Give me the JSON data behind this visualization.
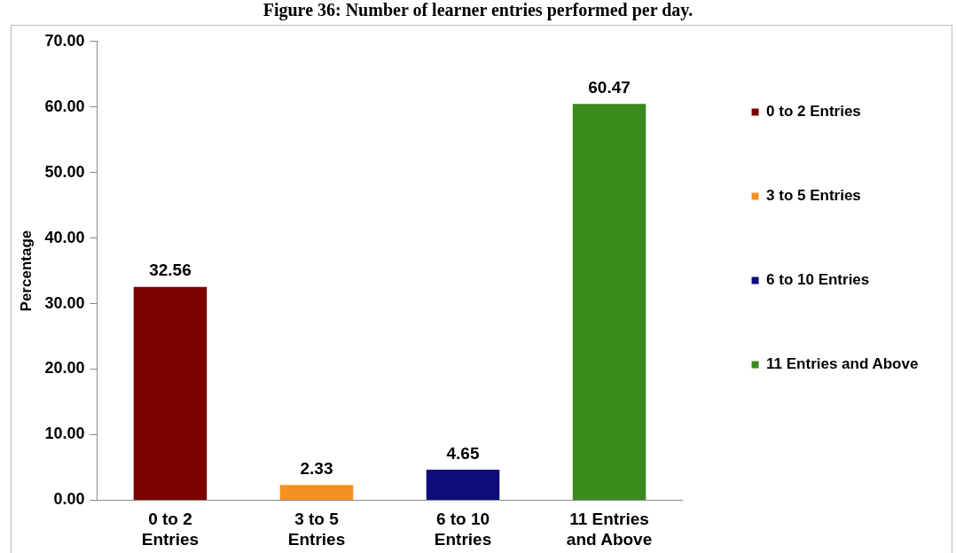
{
  "chart_data": {
    "type": "bar",
    "title": "Figure 36: Number of learner entries performed per day.",
    "ylabel": "Percentage",
    "categories": [
      "0 to 2 Entries",
      "3 to 5 Entries",
      "6 to 10 Entries",
      "11 Entries and Above"
    ],
    "series": [
      {
        "name": "0 to 2 Entries",
        "color": "#7b0000",
        "values": [
          32.56,
          null,
          null,
          null
        ]
      },
      {
        "name": "3 to 5 Entries",
        "color": "#f7901e",
        "values": [
          null,
          2.33,
          null,
          null
        ]
      },
      {
        "name": "6 to 10 Entries",
        "color": "#0d0d7a",
        "values": [
          null,
          null,
          4.65,
          null
        ]
      },
      {
        "name": "11 Entries and Above",
        "color": "#3a8a1e",
        "values": [
          null,
          null,
          null,
          60.47
        ]
      }
    ],
    "ylim": [
      0,
      70
    ],
    "yticks": [
      {
        "value": 0,
        "label": "0.00"
      },
      {
        "value": 10,
        "label": "10.00"
      },
      {
        "value": 20,
        "label": "20.00"
      },
      {
        "value": 30,
        "label": "30.00"
      },
      {
        "value": 40,
        "label": "40.00"
      },
      {
        "value": 50,
        "label": "50.00"
      },
      {
        "value": 60,
        "label": "60.00"
      },
      {
        "value": 70,
        "label": "70.00"
      }
    ],
    "data_labels": true,
    "grid": false,
    "legend": "right"
  }
}
